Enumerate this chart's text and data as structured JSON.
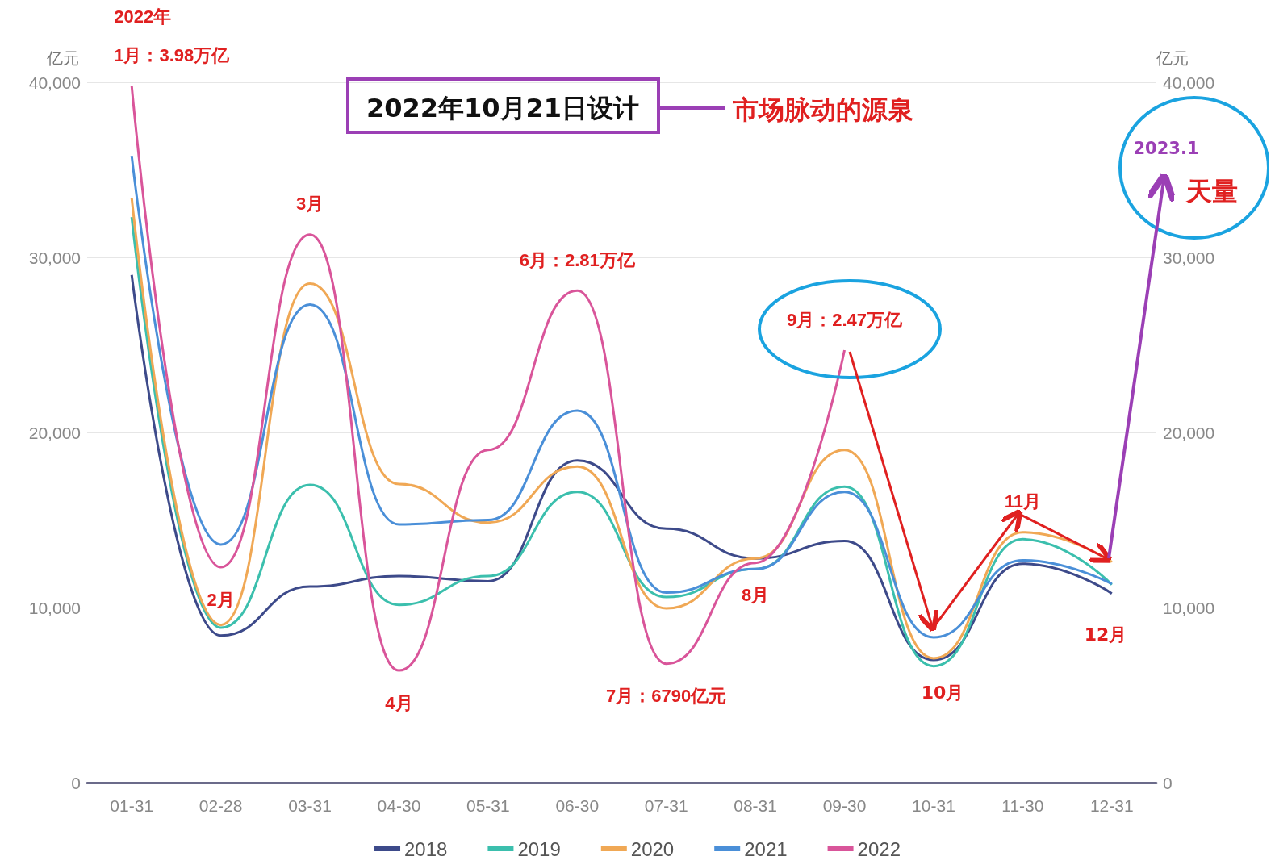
{
  "chart_data": {
    "type": "line",
    "categories": [
      "01-31",
      "02-28",
      "03-31",
      "04-30",
      "05-31",
      "06-30",
      "07-31",
      "08-31",
      "09-30",
      "10-31",
      "11-30",
      "12-31"
    ],
    "ylabel": "亿元",
    "y2label": "亿元",
    "ylim": [
      0,
      40000
    ],
    "yticks": [
      {
        "value": 0,
        "label": "0"
      },
      {
        "value": 10000,
        "label": "10,000"
      },
      {
        "value": 20000,
        "label": "20,000"
      },
      {
        "value": 30000,
        "label": "30,000"
      },
      {
        "value": 40000,
        "label": "40,000"
      }
    ],
    "y2lim": [
      0,
      40000
    ],
    "y2ticks": [
      {
        "value": 0,
        "label": "0"
      },
      {
        "value": 10000,
        "label": "10,000"
      },
      {
        "value": 20000,
        "label": "20,000"
      },
      {
        "value": 30000,
        "label": "30,000"
      },
      {
        "value": 40000,
        "label": "40,000"
      }
    ],
    "series": [
      {
        "name": "2018",
        "color": "#3d4a8a",
        "values": [
          29000,
          8400,
          11200,
          11800,
          11500,
          18400,
          14500,
          12800,
          13800,
          7000,
          12500,
          10800
        ]
      },
      {
        "name": "2019",
        "color": "#3bbfad",
        "values": [
          32300,
          8850,
          17000,
          10150,
          11800,
          16600,
          10600,
          12200,
          16900,
          6650,
          13900,
          11300
        ]
      },
      {
        "name": "2020",
        "color": "#f0a855",
        "values": [
          33400,
          9000,
          28500,
          17050,
          14850,
          18050,
          9950,
          12800,
          19000,
          7100,
          14300,
          12600
        ]
      },
      {
        "name": "2021",
        "color": "#4a8fd8",
        "values": [
          35800,
          13600,
          27300,
          14750,
          15000,
          21250,
          10850,
          12200,
          16600,
          8300,
          12700,
          11350
        ]
      },
      {
        "name": "2022",
        "color": "#d9559a",
        "values": [
          39800,
          12300,
          31300,
          6400,
          19000,
          28100,
          6790,
          12550,
          24700,
          null,
          null,
          null
        ]
      }
    ],
    "annotations": [
      {
        "text": "2022年\n1月：3.98万亿",
        "x": "01-31",
        "y": 39800
      },
      {
        "text": "2月",
        "x": "02-28",
        "y": 12300
      },
      {
        "text": "3月",
        "x": "03-31",
        "y": 31300
      },
      {
        "text": "4月",
        "x": "04-30",
        "y": 6400
      },
      {
        "text": "6月：2.81万亿",
        "x": "06-30",
        "y": 28100
      },
      {
        "text": "7月：6790亿元",
        "x": "07-31",
        "y": 6790
      },
      {
        "text": "8月",
        "x": "08-31",
        "y": 12550
      },
      {
        "text": "9月：2.47万亿",
        "x": "09-30",
        "y": 24700
      },
      "10月",
      {
        "text": "11月",
        "x": "11-30",
        "y": 14300
      },
      "12月",
      "2022年10月21日设计",
      "市场脉动的源泉",
      "2023.1",
      "天量"
    ],
    "grid": "y",
    "legend": "bottom",
    "marker": "none",
    "line_style": "solid"
  }
}
